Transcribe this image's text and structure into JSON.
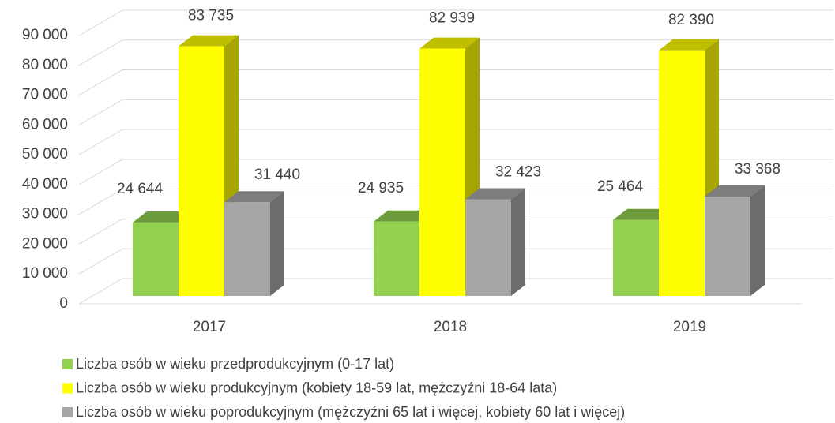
{
  "chart_data": {
    "type": "bar",
    "categories": [
      "2017",
      "2018",
      "2019"
    ],
    "series": [
      {
        "name": "Liczba osób w wieku przedprodukcyjnym (0-17 lat)",
        "color": "#92d050",
        "values": [
          24644,
          24935,
          25464
        ],
        "value_labels": [
          "24 644",
          "24 935",
          "25 464"
        ]
      },
      {
        "name": "Liczba osób w wieku produkcyjnym (kobiety 18-59 lat, mężczyźni 18-64 lata)",
        "color": "#ffff00",
        "values": [
          83735,
          82939,
          82390
        ],
        "value_labels": [
          "83 735",
          "82 939",
          "82 390"
        ]
      },
      {
        "name": "Liczba osób w wieku poprodukcyjnym (mężczyźni 65 lat i więcej, kobiety 60 lat i więcej)",
        "color": "#a6a6a6",
        "values": [
          31440,
          32423,
          33368
        ],
        "value_labels": [
          "31 440",
          "32 423",
          "33 368"
        ]
      }
    ],
    "ylim": [
      0,
      90000
    ],
    "yticks": [
      0,
      {
        "value": 10000,
        "label": "10 000"
      },
      {
        "value": 20000,
        "label": "20 000"
      },
      {
        "value": 30000,
        "label": "30 000"
      },
      {
        "value": 40000,
        "label": "40 000"
      },
      {
        "value": 50000,
        "label": "50 000"
      },
      {
        "value": 60000,
        "label": "60 000"
      },
      {
        "value": 70000,
        "label": "70 000"
      },
      {
        "value": 80000,
        "label": "80 000"
      },
      {
        "value": 90000,
        "label": "90 000"
      }
    ],
    "grid": true,
    "legend": "bottom"
  }
}
